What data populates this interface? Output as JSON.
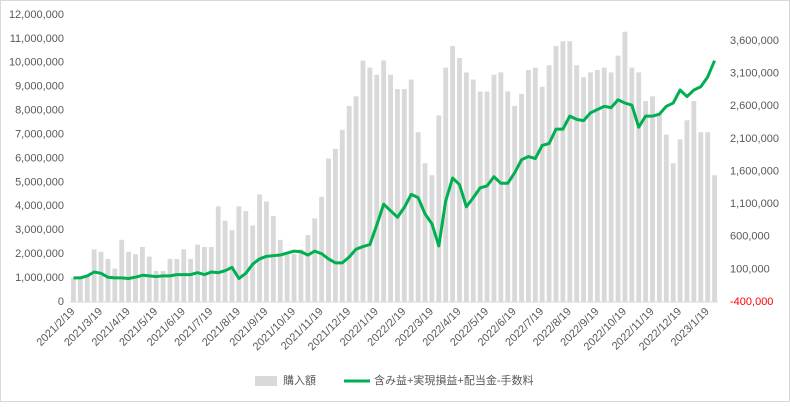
{
  "chart_data": {
    "type": "combo",
    "categories": [
      "2021/2/19",
      null,
      null,
      null,
      "2021/3/19",
      null,
      null,
      null,
      "2021/4/19",
      null,
      null,
      null,
      "2021/5/19",
      null,
      null,
      null,
      "2021/6/19",
      null,
      null,
      null,
      "2021/7/19",
      null,
      null,
      null,
      "2021/8/19",
      null,
      null,
      null,
      "2021/9/19",
      null,
      null,
      null,
      "2021/10/19",
      null,
      null,
      null,
      "2021/11/19",
      null,
      null,
      null,
      "2021/12/19",
      null,
      null,
      null,
      "2022/1/19",
      null,
      null,
      null,
      "2022/2/19",
      null,
      null,
      null,
      "2022/3/19",
      null,
      null,
      null,
      "2022/4/19",
      null,
      null,
      null,
      "2022/5/19",
      null,
      null,
      null,
      "2022/6/19",
      null,
      null,
      null,
      "2022/7/19",
      null,
      null,
      null,
      "2022/8/19",
      null,
      null,
      null,
      "2022/9/19",
      null,
      null,
      null,
      "2022/10/19",
      null,
      null,
      null,
      "2022/11/19",
      null,
      null,
      null,
      "2022/12/19",
      null,
      null,
      null,
      "2023/1/19",
      null
    ],
    "series": [
      {
        "name": "購入額",
        "type": "bar",
        "color": "#d9d9d9",
        "values": [
          1000000,
          1000000,
          1100000,
          2200000,
          2100000,
          1800000,
          1400000,
          2600000,
          2100000,
          2000000,
          2300000,
          1900000,
          1300000,
          1300000,
          1800000,
          1800000,
          2200000,
          1800000,
          2400000,
          2300000,
          2300000,
          4000000,
          3400000,
          3000000,
          4000000,
          3800000,
          3200000,
          4500000,
          4200000,
          3600000,
          2600000,
          2000000,
          2000000,
          2200000,
          2800000,
          3500000,
          4400000,
          6000000,
          6400000,
          7200000,
          8200000,
          8600000,
          10100000,
          9800000,
          9500000,
          10100000,
          9500000,
          8900000,
          8900000,
          9300000,
          7100000,
          5800000,
          5300000,
          7800000,
          9800000,
          10700000,
          10200000,
          9600000,
          9300000,
          8800000,
          8800000,
          9500000,
          9600000,
          8800000,
          8200000,
          8700000,
          9700000,
          9800000,
          9000000,
          9900000,
          10700000,
          10900000,
          10900000,
          9900000,
          9400000,
          9600000,
          9700000,
          9800000,
          9600000,
          10300000,
          11300000,
          9800000,
          9600000,
          8400000,
          8600000,
          7900000,
          7000000,
          5800000,
          6800000,
          7600000,
          8400000,
          7100000,
          7100000,
          5300000
        ]
      },
      {
        "name": "含み益+実現損益+配当金-手数料",
        "type": "line",
        "axis": "y2",
        "color": "#00b050",
        "values": [
          -30000,
          -30000,
          0,
          60000,
          40000,
          -20000,
          -30000,
          -30000,
          -40000,
          -20000,
          10000,
          0,
          -10000,
          0,
          0,
          20000,
          20000,
          20000,
          50000,
          20000,
          60000,
          50000,
          80000,
          130000,
          -40000,
          40000,
          180000,
          260000,
          300000,
          310000,
          320000,
          350000,
          380000,
          370000,
          320000,
          380000,
          340000,
          260000,
          200000,
          200000,
          290000,
          410000,
          450000,
          480000,
          780000,
          1100000,
          1000000,
          900000,
          1050000,
          1250000,
          1200000,
          950000,
          800000,
          460000,
          1150000,
          1500000,
          1400000,
          1060000,
          1200000,
          1350000,
          1380000,
          1520000,
          1420000,
          1420000,
          1580000,
          1780000,
          1830000,
          1800000,
          2000000,
          2030000,
          2250000,
          2250000,
          2450000,
          2400000,
          2380000,
          2500000,
          2550000,
          2600000,
          2580000,
          2700000,
          2650000,
          2620000,
          2280000,
          2450000,
          2450000,
          2480000,
          2600000,
          2650000,
          2850000,
          2750000,
          2850000,
          2900000,
          3050000,
          3300000
        ]
      }
    ],
    "ylim": [
      0,
      12000000
    ],
    "yticks": [
      0,
      {
        "value": 1000000,
        "label": "1,000,000"
      },
      {
        "value": 2000000,
        "label": "2,000,000"
      },
      {
        "value": 3000000,
        "label": "3,000,000"
      },
      {
        "value": 4000000,
        "label": "4,000,000"
      },
      {
        "value": 5000000,
        "label": "5,000,000"
      },
      {
        "value": 6000000,
        "label": "6,000,000"
      },
      {
        "value": 7000000,
        "label": "7,000,000"
      },
      {
        "value": 8000000,
        "label": "8,000,000"
      },
      {
        "value": 9000000,
        "label": "9,000,000"
      },
      {
        "value": 10000000,
        "label": "10,000,000"
      },
      {
        "value": 11000000,
        "label": "11,000,000"
      },
      {
        "value": 12000000,
        "label": "12,000,000"
      }
    ],
    "y2lim": [
      -400000,
      4000000
    ],
    "y2ticks": [
      {
        "value": -400000,
        "label": "-400,000"
      },
      {
        "value": 100000,
        "label": "100,000"
      },
      {
        "value": 600000,
        "label": "600,000"
      },
      {
        "value": 1100000,
        "label": "1,100,000"
      },
      {
        "value": 1600000,
        "label": "1,600,000"
      },
      {
        "value": 2100000,
        "label": "2,100,000"
      },
      {
        "value": 2600000,
        "label": "2,600,000"
      },
      {
        "value": 3100000,
        "label": "3,100,000"
      },
      {
        "value": 3600000,
        "label": "3,600,000"
      }
    ],
    "grid": false,
    "legend": "bottom"
  }
}
